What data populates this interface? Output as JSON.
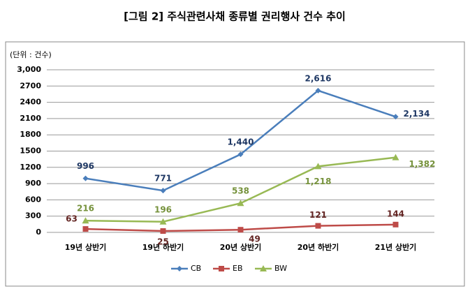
{
  "chart_data": {
    "type": "line",
    "title": "[그림 2] 주식관련사채 종류별 권리행사 건수 추이",
    "unit_label": "(단위 : 건수)",
    "categories": [
      "19년 상반기",
      "19년 하반기",
      "20년 상반기",
      "20년 하반기",
      "21년 상반기"
    ],
    "series": [
      {
        "name": "CB",
        "color": "#4a7ebb",
        "marker": "diamond",
        "values": [
          996,
          771,
          1440,
          2616,
          2134
        ],
        "value_labels": [
          "996",
          "771",
          "1,440",
          "2,616",
          "2,134"
        ]
      },
      {
        "name": "EB",
        "color": "#be4b48",
        "marker": "square",
        "values": [
          63,
          25,
          49,
          121,
          144
        ]
      },
      {
        "name": "BW",
        "color": "#98b954",
        "marker": "triangle",
        "values": [
          216,
          196,
          538,
          1218,
          1382
        ],
        "value_labels": [
          "216",
          "196",
          "538",
          "1,218",
          "1,382"
        ]
      }
    ],
    "ylim": [
      0,
      3000
    ],
    "yticks": [
      0,
      300,
      600,
      900,
      1200,
      1500,
      1800,
      2100,
      2400,
      2700,
      {
        "value": 3000,
        "label": "3,000"
      }
    ],
    "grid": true,
    "legend": "bottom"
  }
}
